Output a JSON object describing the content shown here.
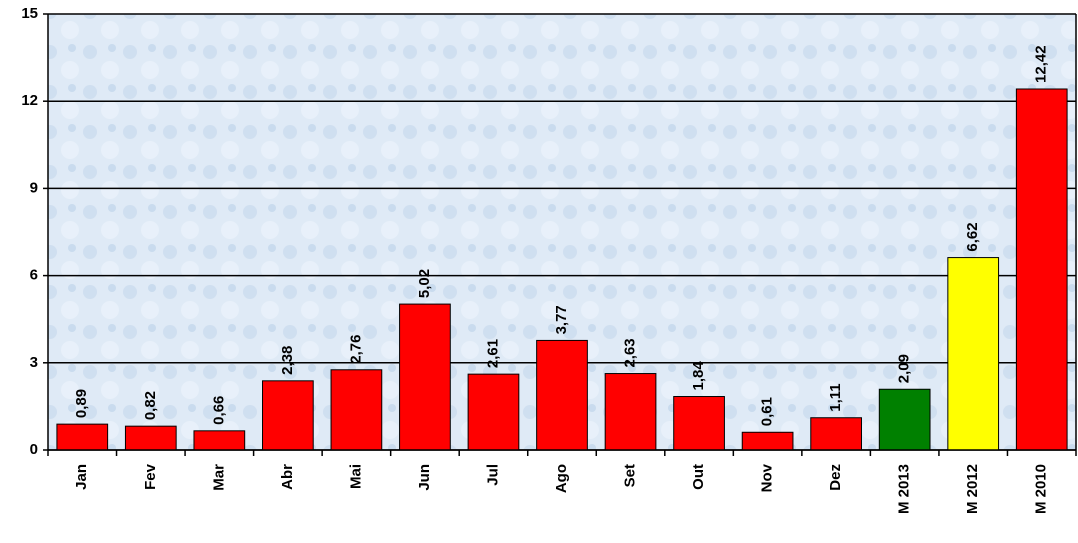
{
  "chart_data": {
    "type": "bar",
    "categories": [
      "Jan",
      "Fev",
      "Mar",
      "Abr",
      "Mai",
      "Jun",
      "Jul",
      "Ago",
      "Set",
      "Out",
      "Nov",
      "Dez",
      "M 2013",
      "M 2012",
      "M 2010"
    ],
    "values": [
      0.89,
      0.82,
      0.66,
      2.38,
      2.76,
      5.02,
      2.61,
      3.77,
      2.63,
      1.84,
      0.61,
      1.11,
      2.09,
      6.62,
      12.42
    ],
    "value_labels": [
      "0,89",
      "0,82",
      "0,66",
      "2,38",
      "2,76",
      "5,02",
      "2,61",
      "3,77",
      "2,63",
      "1,84",
      "0,61",
      "1,11",
      "2,09",
      "6,62",
      "12,42"
    ],
    "colors": [
      "#ff0000",
      "#ff0000",
      "#ff0000",
      "#ff0000",
      "#ff0000",
      "#ff0000",
      "#ff0000",
      "#ff0000",
      "#ff0000",
      "#ff0000",
      "#ff0000",
      "#ff0000",
      "#008000",
      "#ffff00",
      "#ff0000"
    ],
    "ylim": [
      0,
      15
    ],
    "yticks": [
      0,
      3,
      6,
      9,
      12,
      15
    ],
    "grid": true
  }
}
